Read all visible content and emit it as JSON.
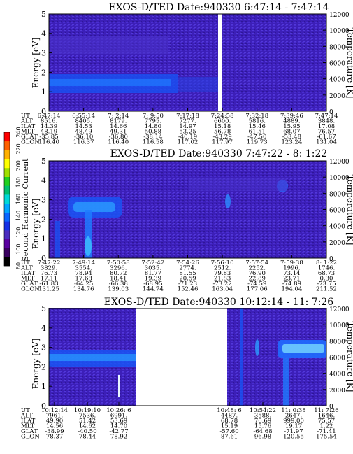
{
  "panels": [
    {
      "title": "EXOS-D/TED   Date:940330  6:47:14 - 7:47:14",
      "ylabel": "Energy [eV]",
      "y2label": "Temperature [K]",
      "yticks": [
        "0",
        "1",
        "2",
        "3",
        "4",
        "5"
      ],
      "y2ticks": [
        "0",
        "2000",
        "4000",
        "6000",
        "8000",
        "10000",
        "12000"
      ],
      "orbit_labels": [
        "UT",
        "ALT",
        "ILAT",
        "MLT",
        "GLAT",
        "GLON"
      ],
      "orbit_columns": [
        [
          "6:47:14",
          "8516.",
          "14.39",
          "48.19",
          "-35.85",
          "116.40"
        ],
        [
          "6:55:14",
          "8405.",
          "14.53",
          "48.49",
          "-36.10",
          "116.37"
        ],
        [
          "7: 2:14",
          "8179.",
          "14.66",
          "49.31",
          "-36.80",
          "116.40"
        ],
        [
          "7: 9:50",
          "7795.",
          "14.80",
          "50.88",
          "-38.14",
          "116.58"
        ],
        [
          "7:17:18",
          "7277.",
          "14.97",
          "53.25",
          "-40.19",
          "117.02"
        ],
        [
          "7:24:58",
          "6600.",
          "15.18",
          "56.78",
          "-43.29",
          "117.97"
        ],
        [
          "7:32:18",
          "5816.",
          "15.46",
          "61.51",
          "-47.50",
          "119.73"
        ],
        [
          "7:39:46",
          "4889.",
          "15.95",
          "68.07",
          "-53.48",
          "123.24"
        ],
        [
          "7:47:14",
          "3848.",
          "17.08",
          "76.57",
          "-61.67",
          "131.04"
        ]
      ]
    },
    {
      "title": "EXOS-D/TED   Date:940330  7:47:22 - 8: 1:22",
      "ylabel": "Energy [eV]",
      "y2label": "Temperature [K]",
      "yticks": [
        "0",
        "1",
        "2",
        "3",
        "4",
        "5"
      ],
      "y2ticks": [
        "0",
        "2000",
        "4000",
        "6000",
        "8000",
        "10000",
        "12000"
      ],
      "orbit_labels": [
        "UT",
        "ALT",
        "ILAT",
        "MLT",
        "GLAT",
        "GLON"
      ],
      "orbit_columns": [
        [
          "7:47:22",
          "3829.",
          "76.73",
          "17.11",
          "-61.83",
          "131.25"
        ],
        [
          "7:49:14",
          "3554.",
          "78.94",
          "17.68",
          "-64.25",
          "134.76"
        ],
        [
          "7:50:58",
          "3296.",
          "80.72",
          "18.41",
          "-66.38",
          "139.03"
        ],
        [
          "7:52:42",
          "3035.",
          "81.77",
          "19.39",
          "-68.95",
          "144.74"
        ],
        [
          "7:54:26",
          "2774.",
          "81.55",
          "20.59",
          "-71.23",
          "152.46"
        ],
        [
          "7:56:10",
          "2512.",
          "79.83",
          "21.83",
          "-73.22",
          "163.04"
        ],
        [
          "7:57:54",
          "2252.",
          "76.90",
          "22.89",
          "-74.59",
          "177.06"
        ],
        [
          "7:59:38",
          "1996.",
          "73.14",
          "23.71",
          "-74.89",
          "194.04"
        ],
        [
          "8: 1:22",
          "1746.",
          "68.73",
          "0.30",
          "-73.75",
          "211.52"
        ]
      ]
    },
    {
      "title": "EXOS-D/TED   Date:940330  10:12:14 - 11: 7:26",
      "ylabel": "Energy [eV]",
      "y2label": "Temperature [K]",
      "yticks": [
        "0",
        "1",
        "2",
        "3",
        "4",
        "5"
      ],
      "y2ticks": [
        "0",
        "2000",
        "4000",
        "6000",
        "8000",
        "10000",
        "12000"
      ],
      "orbit_labels": [
        "UT",
        "ALT",
        "ILAT",
        "MLT",
        "GLAT",
        "GLON"
      ],
      "orbit_columns_left": [
        [
          "10:12:14",
          "7961.",
          "49.90",
          "14.56",
          "-38.99",
          "78.37"
        ],
        [
          "10:19:10",
          "7536.",
          "51.42",
          "14.62",
          "-40.50",
          "78.44"
        ],
        [
          "10:26: 6",
          "6991.",
          "53.69",
          "14.70",
          "-42.77",
          "78.92"
        ]
      ],
      "orbit_columns_right": [
        [
          "10:48: 6",
          "4487.",
          "68.78",
          "15.19",
          "-57.60",
          "87.61"
        ],
        [
          "10:54:22",
          "3588.",
          "76.69",
          "15.76",
          "-64.68",
          "96.98"
        ],
        [
          "11: 0:38",
          "2647.",
          "999.00",
          "19.17",
          "-71.97",
          "120.55"
        ],
        [
          "11: 7:26",
          "1646.",
          "75.57",
          "1.22",
          "-71.41",
          "175.54"
        ]
      ]
    }
  ],
  "colorbar": {
    "label": "Second Harmonic Current",
    "ticks": [
      "80",
      "100",
      "120",
      "140",
      "160",
      "180",
      "200",
      "220",
      "240"
    ],
    "colors": [
      "#000000",
      "#3a0060",
      "#5a00a0",
      "#4b2cbf",
      "#1430e6",
      "#0a66ff",
      "#00a6ff",
      "#00d8d8",
      "#00c070",
      "#20d020",
      "#a0e000",
      "#ffff00",
      "#ffb000",
      "#ff6000",
      "#ff0000"
    ]
  },
  "chart_data": [
    {
      "type": "heatmap",
      "title": "EXOS-D/TED   Date:940330  6:47:14 - 7:47:14",
      "ylabel": "Energy [eV]",
      "y2label": "Temperature [K]",
      "ylim": [
        0,
        5
      ],
      "y2lim": [
        0,
        12000
      ],
      "x_ticks": [
        "6:47:14",
        "6:55:14",
        "7: 2:14",
        "7: 9:50",
        "7:17:18",
        "7:24:58",
        "7:32:18",
        "7:39:46",
        "7:47:14"
      ],
      "features": [
        {
          "x": [
            0.0,
            0.45
          ],
          "energy": [
            2.1,
            3.0
          ],
          "level": 150
        },
        {
          "x": [
            0.0,
            0.4
          ],
          "energy": [
            3.5,
            4.7
          ],
          "level": 115
        },
        {
          "x": [
            0.45,
            0.6
          ],
          "energy": [
            2.1,
            3.0
          ],
          "level": 125
        }
      ],
      "data_gap": [
        "7:24:30",
        "7:25:20"
      ]
    },
    {
      "type": "heatmap",
      "title": "EXOS-D/TED   Date:940330  7:47:22 - 8: 1:22",
      "ylabel": "Energy [eV]",
      "y2label": "Temperature [K]",
      "ylim": [
        0,
        5
      ],
      "y2lim": [
        0,
        12000
      ],
      "x_ticks": [
        "7:47:22",
        "7:49:14",
        "7:50:58",
        "7:52:42",
        "7:54:26",
        "7:56:10",
        "7:57:54",
        "7:59:38",
        "8: 1:22"
      ],
      "features": [
        {
          "x": [
            0.06,
            0.35
          ],
          "energy": [
            2.2,
            3.3
          ],
          "level": 165
        },
        {
          "x": [
            0.14,
            0.17
          ],
          "energy": [
            0.0,
            2.2
          ],
          "level": 175
        },
        {
          "x": [
            0.02,
            0.05
          ],
          "energy": [
            0.0,
            1.8
          ],
          "level": 160
        },
        {
          "x": [
            0.65,
            0.67
          ],
          "energy": [
            2.4,
            2.9
          ],
          "level": 160
        },
        {
          "x": [
            0.9,
            0.95
          ],
          "energy": [
            3.3,
            3.8
          ],
          "level": 150
        }
      ]
    },
    {
      "type": "heatmap",
      "title": "EXOS-D/TED   Date:940330  10:12:14 - 11: 7:26",
      "ylabel": "Energy [eV]",
      "y2label": "Temperature [K]",
      "ylim": [
        0,
        5
      ],
      "y2lim": [
        0,
        12000
      ],
      "x_ticks": [
        "10:12:14",
        "10:19:10",
        "10:26: 6",
        "10:48: 6",
        "10:54:22",
        "11: 0:38",
        "11: 7:26"
      ],
      "features": [
        {
          "x": [
            0.0,
            0.29
          ],
          "energy": [
            2.3,
            2.8
          ],
          "level": 175
        },
        {
          "x": [
            0.71,
            0.72
          ],
          "energy": [
            0.0,
            5.0
          ],
          "level": 145
        },
        {
          "x": [
            0.79,
            0.8
          ],
          "energy": [
            2.6,
            3.4
          ],
          "level": 155
        },
        {
          "x": [
            0.87,
            1.0
          ],
          "energy": [
            2.6,
            3.3
          ],
          "level": 190
        },
        {
          "x": [
            0.87,
            0.89
          ],
          "energy": [
            0.0,
            2.6
          ],
          "level": 175
        }
      ],
      "data_gap": [
        "10:28:00",
        "10:47:30"
      ]
    }
  ]
}
